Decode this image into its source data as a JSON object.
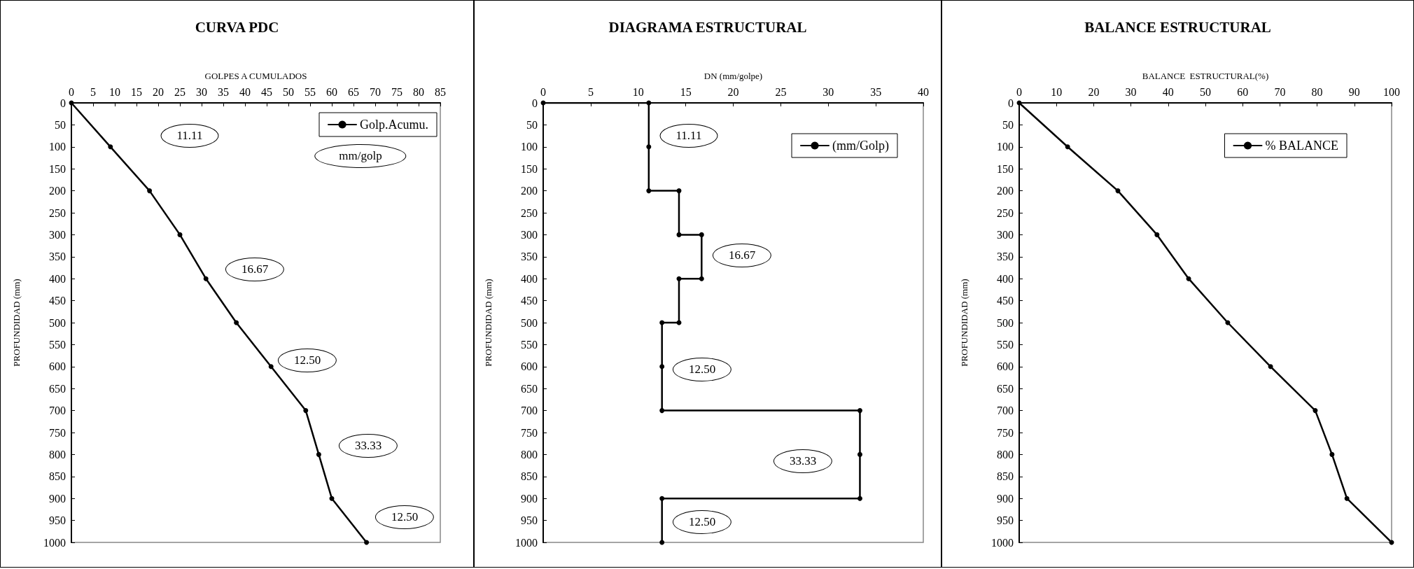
{
  "chart_data": [
    {
      "type": "line",
      "title": "CURVA PDC",
      "xlabel": "GOLPES A CUMULADOS",
      "ylabel": "PROFUNDIDAD (mm)",
      "xlim": [
        0,
        85
      ],
      "xticks": [
        0,
        5,
        10,
        15,
        20,
        25,
        30,
        35,
        40,
        45,
        50,
        55,
        60,
        65,
        70,
        75,
        80,
        85
      ],
      "ylim": [
        1000,
        0
      ],
      "yticks": [
        0,
        50,
        100,
        150,
        200,
        250,
        300,
        350,
        400,
        450,
        500,
        550,
        600,
        650,
        700,
        750,
        800,
        850,
        900,
        950,
        1000
      ],
      "grid": false,
      "legend": "top right",
      "marker": "circle",
      "line_style": "solid",
      "series": [
        {
          "name": "Golp.Acumu.",
          "color": "#000000",
          "x": [
            0,
            9,
            18,
            25,
            31,
            38,
            46,
            54,
            57,
            60,
            68
          ],
          "values": [
            0,
            100,
            200,
            300,
            400,
            500,
            600,
            700,
            800,
            900,
            1000
          ]
        }
      ],
      "annotations": [
        "11.11",
        "16.67",
        "12.50",
        "33.33",
        "12.50",
        "mm/golp"
      ]
    },
    {
      "type": "line",
      "title": "DIAGRAMA ESTRUCTURAL",
      "xlabel": "DN (mm/golpe)",
      "ylabel": "PROFUNDIDAD (mm)",
      "xlim": [
        0,
        40
      ],
      "xticks": [
        0,
        5,
        10,
        15,
        20,
        25,
        30,
        35,
        40
      ],
      "ylim": [
        1000,
        0
      ],
      "yticks": [
        0,
        50,
        100,
        150,
        200,
        250,
        300,
        350,
        400,
        450,
        500,
        550,
        600,
        650,
        700,
        750,
        800,
        850,
        900,
        950,
        1000
      ],
      "grid": false,
      "legend": "top right",
      "marker": "circle",
      "line_style": "solid",
      "series": [
        {
          "name": "(mm/Golp)",
          "color": "#000000",
          "x": [
            0,
            11.11,
            11.11,
            11.11,
            14.29,
            14.29,
            16.67,
            16.67,
            14.29,
            14.29,
            12.5,
            12.5,
            12.5,
            33.33,
            33.33,
            33.33,
            12.5,
            12.5
          ],
          "values": [
            0,
            0,
            100,
            200,
            200,
            300,
            300,
            400,
            400,
            500,
            500,
            600,
            700,
            700,
            800,
            900,
            900,
            1000
          ]
        }
      ],
      "annotations": [
        "11.11",
        "16.67",
        "12.50",
        "33.33",
        "12.50"
      ]
    },
    {
      "type": "line",
      "title": "BALANCE ESTRUCTURAL",
      "xlabel": "BALANCE  ESTRUCTURAL(%)",
      "ylabel": "PROFUNDIDAD (mm)",
      "xlim": [
        0,
        100
      ],
      "xticks": [
        0,
        10,
        20,
        30,
        40,
        50,
        60,
        70,
        80,
        90,
        100
      ],
      "ylim": [
        1000,
        0
      ],
      "yticks": [
        0,
        50,
        100,
        150,
        200,
        250,
        300,
        350,
        400,
        450,
        500,
        550,
        600,
        650,
        700,
        750,
        800,
        850,
        900,
        950,
        1000
      ],
      "grid": false,
      "legend": "top right",
      "marker": "circle",
      "line_style": "solid",
      "series": [
        {
          "name": "% BALANCE",
          "color": "#000000",
          "x": [
            0,
            13,
            26.5,
            37,
            45.5,
            56,
            67.5,
            79.5,
            84,
            88,
            100
          ],
          "values": [
            0,
            100,
            200,
            300,
            400,
            500,
            600,
            700,
            800,
            900,
            1000
          ]
        }
      ]
    }
  ]
}
